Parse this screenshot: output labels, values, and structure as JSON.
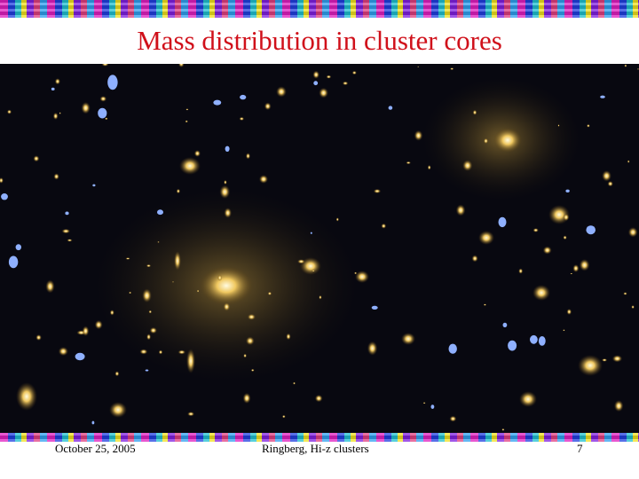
{
  "slide": {
    "title": "Mass distribution in cluster cores",
    "footer": {
      "date": "October 25, 2005",
      "center": "Ringberg, Hi-z clusters",
      "page": "7"
    }
  }
}
